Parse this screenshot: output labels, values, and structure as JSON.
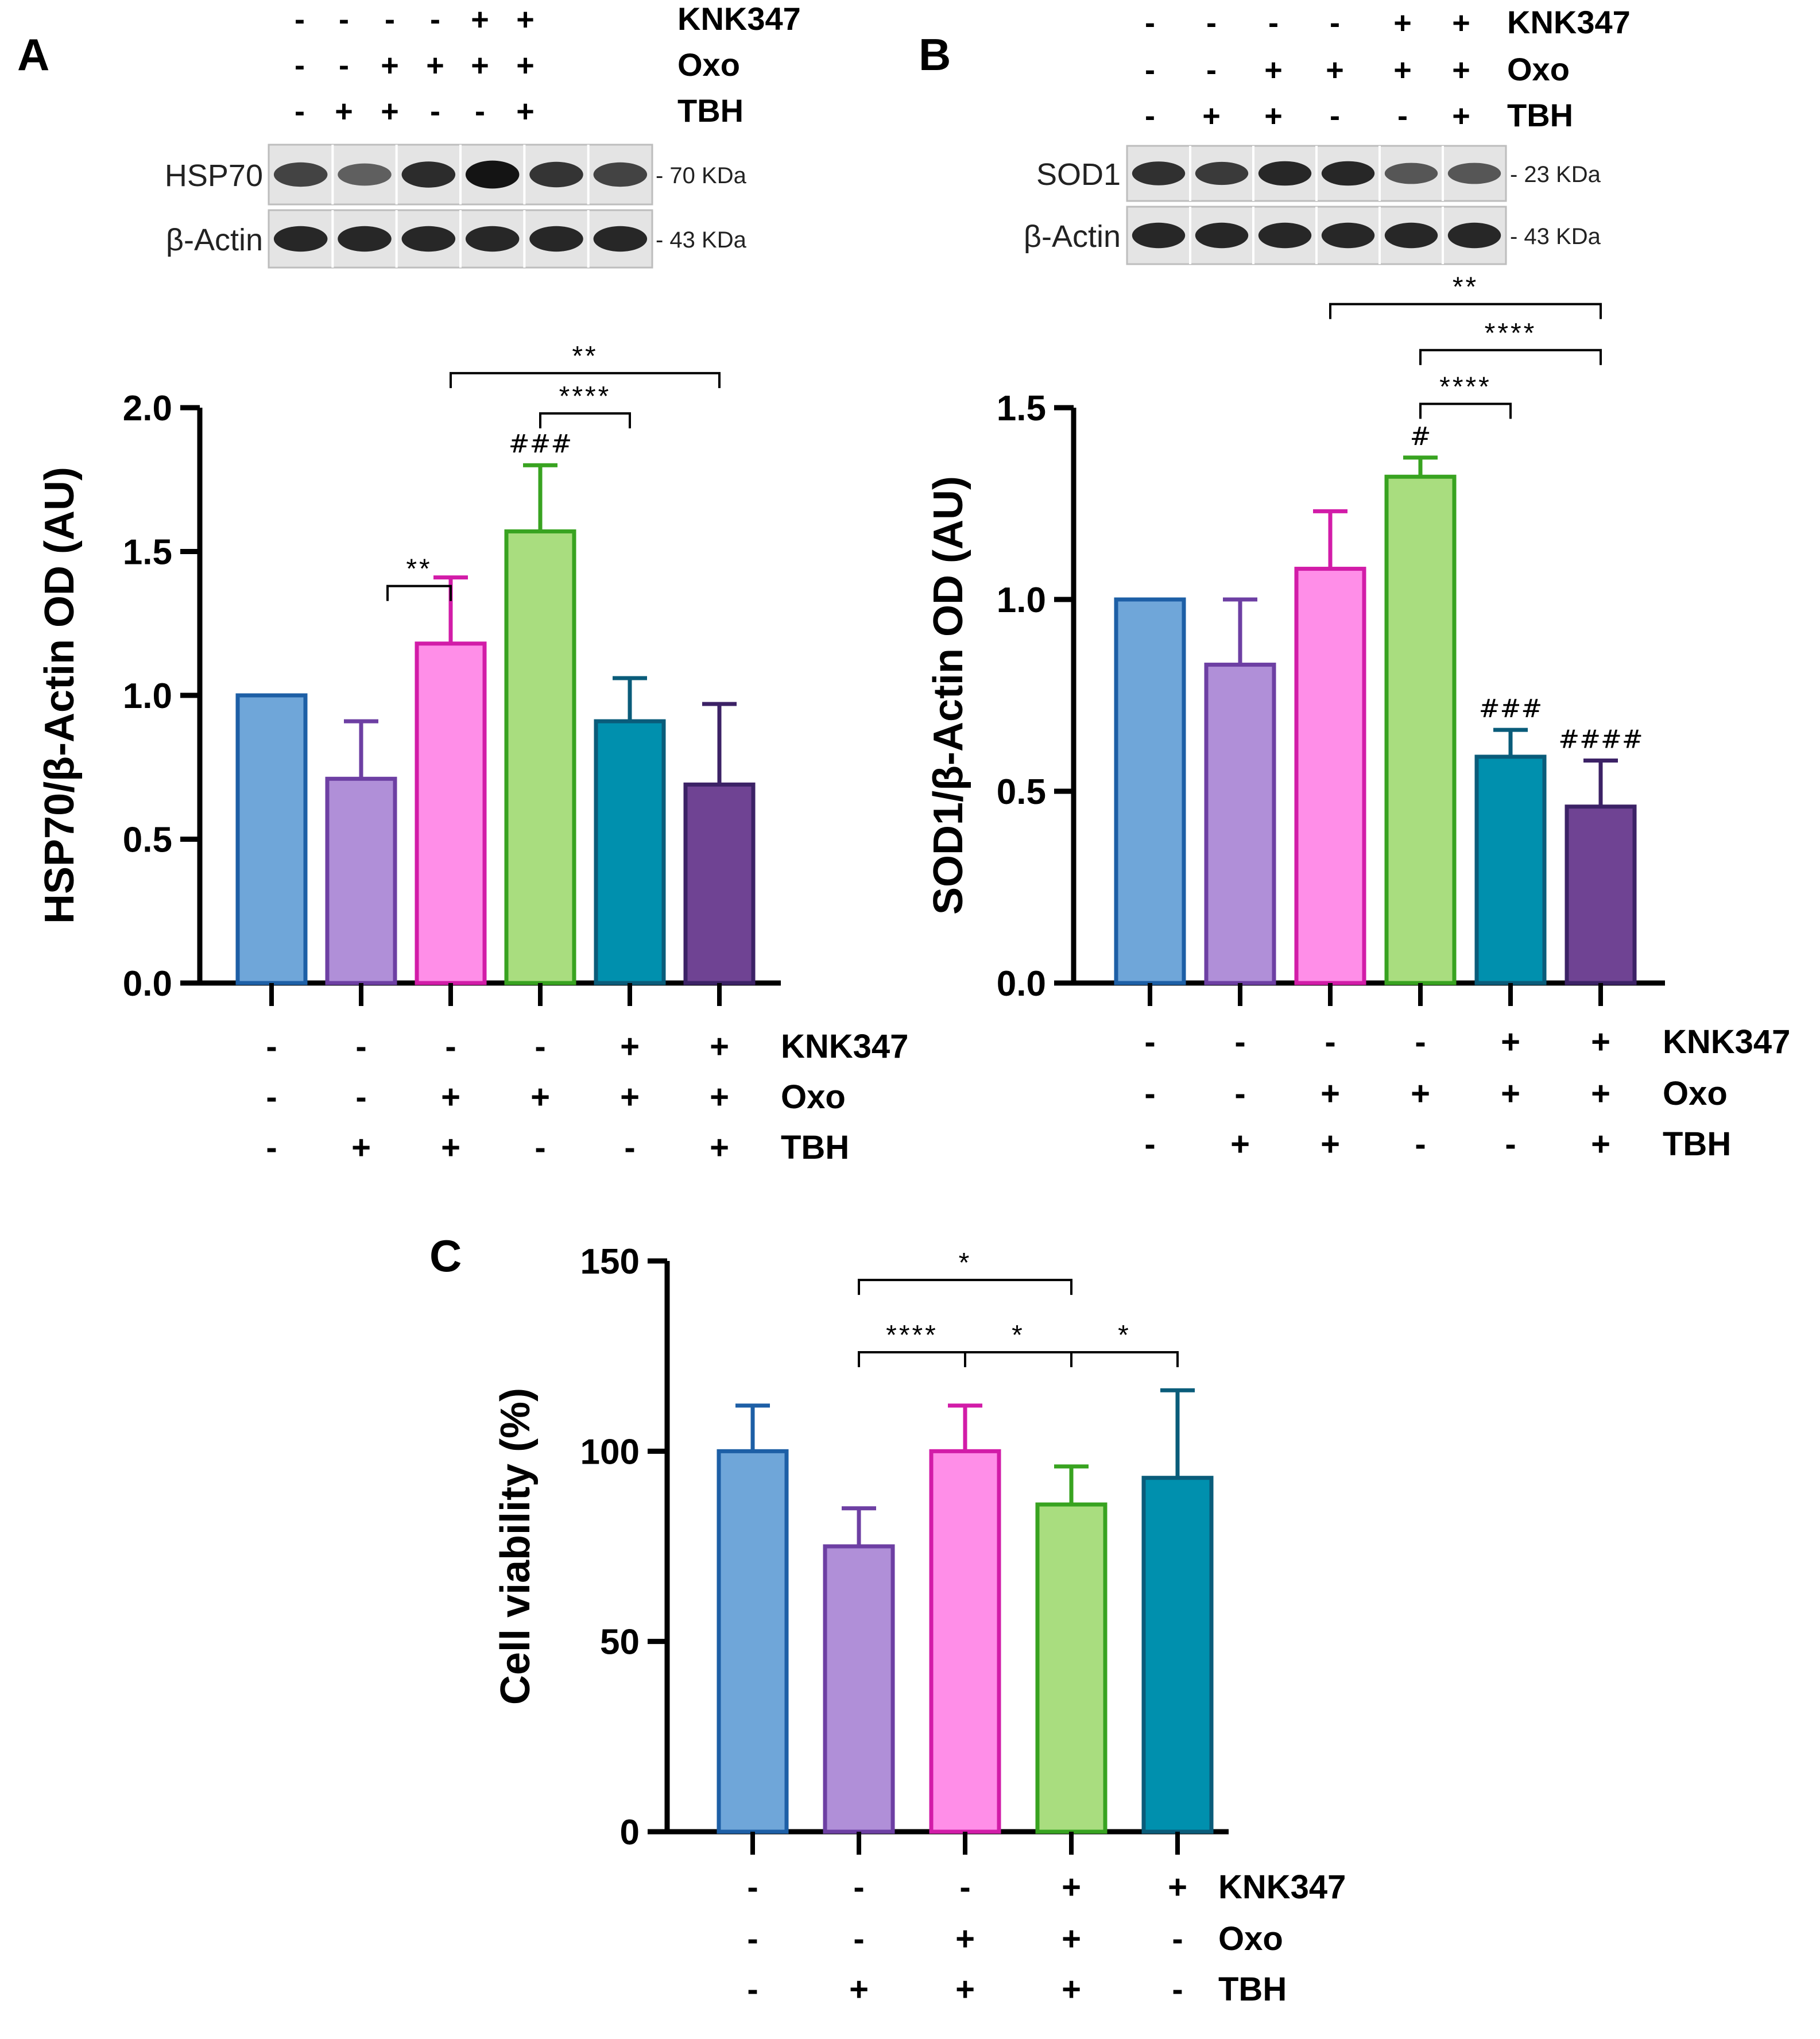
{
  "chart_data": [
    {
      "panel": "A",
      "type": "bar",
      "ylabel": "HSP70/β-Actin OD (AU)",
      "ylim": [
        0,
        2.0
      ],
      "yticks": [
        "0.0",
        "0.5",
        "1.0",
        "1.5",
        "2.0"
      ],
      "values": [
        1.0,
        0.71,
        1.18,
        1.57,
        0.91,
        0.69
      ],
      "errors": [
        0.0,
        0.2,
        0.23,
        0.23,
        0.15,
        0.28
      ],
      "bar_colors": [
        "#6fa6d9",
        "#b08fd8",
        "#ff8ee8",
        "#a9dd7f",
        "#0090ae",
        "#6f4393"
      ],
      "edge_colors": [
        "#1d5fa6",
        "#6d3fa3",
        "#d21ca8",
        "#38a320",
        "#0a5c7a",
        "#3c2266"
      ],
      "row_labels": [
        "KNK347",
        "Oxo",
        "TBH"
      ],
      "conditions": [
        [
          "-",
          "-",
          "-"
        ],
        [
          "-",
          "-",
          "+"
        ],
        [
          "-",
          "+",
          "+"
        ],
        [
          "-",
          "+",
          "-"
        ],
        [
          "+",
          "+",
          "-"
        ],
        [
          "+",
          "+",
          "+"
        ]
      ],
      "hashes": [
        {
          "bar": 3,
          "text": "###"
        }
      ],
      "brackets": [
        {
          "from": 2,
          "to": 2,
          "text": "**",
          "level": 1.38
        },
        {
          "from": 3,
          "to": 4,
          "text": "****",
          "level": 1.98
        },
        {
          "from": 2,
          "to": 5,
          "text": "**",
          "level": 2.12
        }
      ],
      "blot": {
        "rows": [
          {
            "label": "HSP70",
            "size": "- 70 KDa",
            "strength": [
              0.7,
              0.55,
              0.82,
              0.95,
              0.78,
              0.7
            ]
          },
          {
            "label": "β-Actin",
            "size": "- 43 KDa",
            "strength": [
              0.85,
              0.85,
              0.85,
              0.85,
              0.85,
              0.85
            ]
          }
        ]
      }
    },
    {
      "panel": "B",
      "type": "bar",
      "ylabel": "SOD1/β-Actin OD (AU)",
      "ylim": [
        0,
        1.5
      ],
      "yticks": [
        "0.0",
        "0.5",
        "1.0",
        "1.5"
      ],
      "values": [
        1.0,
        0.83,
        1.08,
        1.32,
        0.59,
        0.46
      ],
      "errors": [
        0.0,
        0.17,
        0.15,
        0.05,
        0.07,
        0.12
      ],
      "bar_colors": [
        "#6fa6d9",
        "#b08fd8",
        "#ff8ee8",
        "#a9dd7f",
        "#0090ae",
        "#6f4393"
      ],
      "edge_colors": [
        "#1d5fa6",
        "#6d3fa3",
        "#d21ca8",
        "#38a320",
        "#0a5c7a",
        "#3c2266"
      ],
      "row_labels": [
        "KNK347",
        "Oxo",
        "TBH"
      ],
      "conditions": [
        [
          "-",
          "-",
          "-"
        ],
        [
          "-",
          "-",
          "+"
        ],
        [
          "-",
          "+",
          "+"
        ],
        [
          "-",
          "+",
          "-"
        ],
        [
          "+",
          "+",
          "-"
        ],
        [
          "+",
          "+",
          "+"
        ]
      ],
      "hashes": [
        {
          "bar": 3,
          "text": "#"
        },
        {
          "bar": 4,
          "text": "###"
        },
        {
          "bar": 5,
          "text": "####"
        }
      ],
      "brackets": [
        {
          "from": 3,
          "to": 4,
          "text": "****",
          "level": 1.51
        },
        {
          "from": 3,
          "to": 5,
          "text": "****",
          "level": 1.65
        },
        {
          "from": 2,
          "to": 5,
          "text": "**",
          "level": 1.77
        }
      ],
      "blot": {
        "rows": [
          {
            "label": "SOD1",
            "size": "- 23 KDa",
            "strength": [
              0.8,
              0.75,
              0.85,
              0.85,
              0.6,
              0.6
            ]
          },
          {
            "label": "β-Actin",
            "size": "- 43 KDa",
            "strength": [
              0.85,
              0.85,
              0.85,
              0.85,
              0.85,
              0.85
            ]
          }
        ]
      }
    },
    {
      "panel": "C",
      "type": "bar",
      "ylabel": "Cell viability (%)",
      "ylim": [
        0,
        150
      ],
      "yticks": [
        "0",
        "50",
        "100",
        "150"
      ],
      "values": [
        100,
        75,
        100,
        86,
        93
      ],
      "errors": [
        12,
        10,
        12,
        10,
        23
      ],
      "bar_colors": [
        "#6fa6d9",
        "#b08fd8",
        "#ff8ee8",
        "#a9dd7f",
        "#0090ae"
      ],
      "edge_colors": [
        "#1d5fa6",
        "#6d3fa3",
        "#d21ca8",
        "#38a320",
        "#0a5c7a"
      ],
      "row_labels": [
        "KNK347",
        "Oxo",
        "TBH"
      ],
      "conditions": [
        [
          "-",
          "-",
          "-"
        ],
        [
          "-",
          "-",
          "+"
        ],
        [
          "-",
          "+",
          "+"
        ],
        [
          "+",
          "+",
          "+"
        ],
        [
          "+",
          "-",
          "-"
        ]
      ],
      "hashes": [],
      "brackets": [
        {
          "from": 1,
          "to": 2,
          "text": "****",
          "level": 126
        },
        {
          "from": 2,
          "to": 3,
          "text": "*",
          "level": 126
        },
        {
          "from": 3,
          "to": 4,
          "text": "*",
          "level": 126
        },
        {
          "from": 1,
          "to": 3,
          "text": "*",
          "level": 145
        }
      ]
    }
  ]
}
